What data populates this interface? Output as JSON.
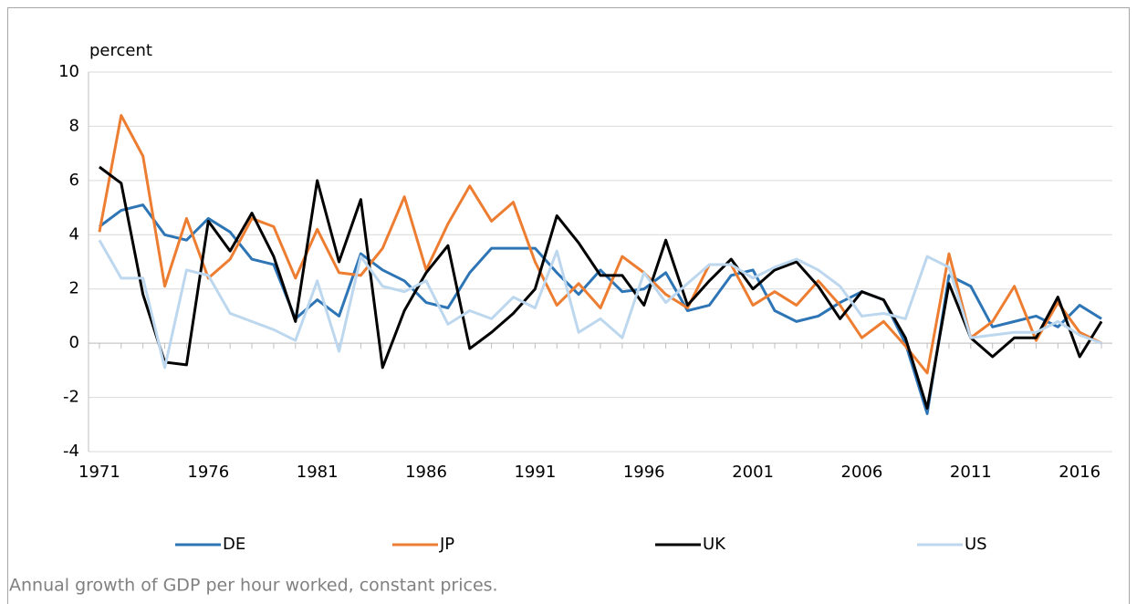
{
  "chart_data": {
    "type": "line",
    "y_label": "percent",
    "caption": "Annual growth of GDP per hour worked, constant prices.",
    "x": [
      1971,
      1972,
      1973,
      1974,
      1975,
      1976,
      1977,
      1978,
      1979,
      1980,
      1981,
      1982,
      1983,
      1984,
      1985,
      1986,
      1987,
      1988,
      1989,
      1990,
      1991,
      1992,
      1993,
      1994,
      1995,
      1996,
      1997,
      1998,
      1999,
      2000,
      2001,
      2002,
      2003,
      2004,
      2005,
      2006,
      2007,
      2008,
      2009,
      2010,
      2011,
      2012,
      2013,
      2014,
      2015,
      2016,
      2017
    ],
    "xlim": [
      1970.5,
      2017.5
    ],
    "xticks": [
      1971,
      1976,
      1981,
      1986,
      1991,
      1996,
      2001,
      2006,
      2011,
      2016
    ],
    "ylim": [
      -4,
      10
    ],
    "yticks": [
      -4,
      -2,
      0,
      2,
      4,
      6,
      8,
      10
    ],
    "grid": true,
    "legend": "bottom",
    "series": [
      {
        "name": "DE",
        "color": "#2e75b6",
        "values": [
          4.3,
          4.9,
          5.1,
          4.0,
          3.8,
          4.6,
          4.1,
          3.1,
          2.9,
          0.9,
          1.6,
          1.0,
          3.3,
          2.7,
          2.3,
          1.5,
          1.3,
          2.6,
          3.5,
          3.5,
          3.5,
          2.6,
          1.8,
          2.7,
          1.9,
          2.0,
          2.6,
          1.2,
          1.4,
          2.5,
          2.7,
          1.2,
          0.8,
          1.0,
          1.5,
          1.9,
          1.6,
          0.0,
          -2.6,
          2.5,
          2.1,
          0.6,
          0.8,
          1.0,
          0.6,
          1.4,
          0.9
        ]
      },
      {
        "name": "JP",
        "color": "#ed7d31",
        "values": [
          4.1,
          8.4,
          6.9,
          2.1,
          4.6,
          2.4,
          3.1,
          4.6,
          4.3,
          2.4,
          4.2,
          2.6,
          2.5,
          3.5,
          5.4,
          2.7,
          4.4,
          5.8,
          4.5,
          5.2,
          3.0,
          1.4,
          2.2,
          1.3,
          3.2,
          2.6,
          1.8,
          1.3,
          2.9,
          2.9,
          1.4,
          1.9,
          1.4,
          2.3,
          1.4,
          0.2,
          0.8,
          -0.1,
          -1.1,
          3.3,
          0.2,
          0.8,
          2.1,
          0.1,
          1.5,
          0.4,
          0.0
        ]
      },
      {
        "name": "UK",
        "color": "#000000",
        "values": [
          6.5,
          5.9,
          1.8,
          -0.7,
          -0.8,
          4.5,
          3.4,
          4.8,
          3.2,
          0.8,
          6.0,
          3.0,
          5.3,
          -0.9,
          1.2,
          2.6,
          3.6,
          -0.2,
          0.4,
          1.1,
          2.0,
          4.7,
          3.7,
          2.5,
          2.5,
          1.4,
          3.8,
          1.4,
          2.3,
          3.1,
          2.0,
          2.7,
          3.0,
          2.1,
          0.9,
          1.9,
          1.6,
          0.2,
          -2.4,
          2.2,
          0.2,
          -0.5,
          0.2,
          0.2,
          1.7,
          -0.5,
          0.8
        ]
      },
      {
        "name": "US",
        "color": "#bdd7ee",
        "values": [
          3.8,
          2.4,
          2.4,
          -0.9,
          2.7,
          2.5,
          1.1,
          0.8,
          0.5,
          0.1,
          2.3,
          -0.3,
          3.2,
          2.1,
          1.9,
          2.3,
          0.7,
          1.2,
          0.9,
          1.7,
          1.3,
          3.4,
          0.4,
          0.9,
          0.2,
          2.6,
          1.5,
          2.2,
          2.9,
          2.9,
          2.4,
          2.8,
          3.1,
          2.7,
          2.1,
          1.0,
          1.1,
          0.9,
          3.2,
          2.8,
          0.2,
          0.3,
          0.4,
          0.4,
          0.8,
          0.3,
          0.0
        ]
      }
    ]
  }
}
